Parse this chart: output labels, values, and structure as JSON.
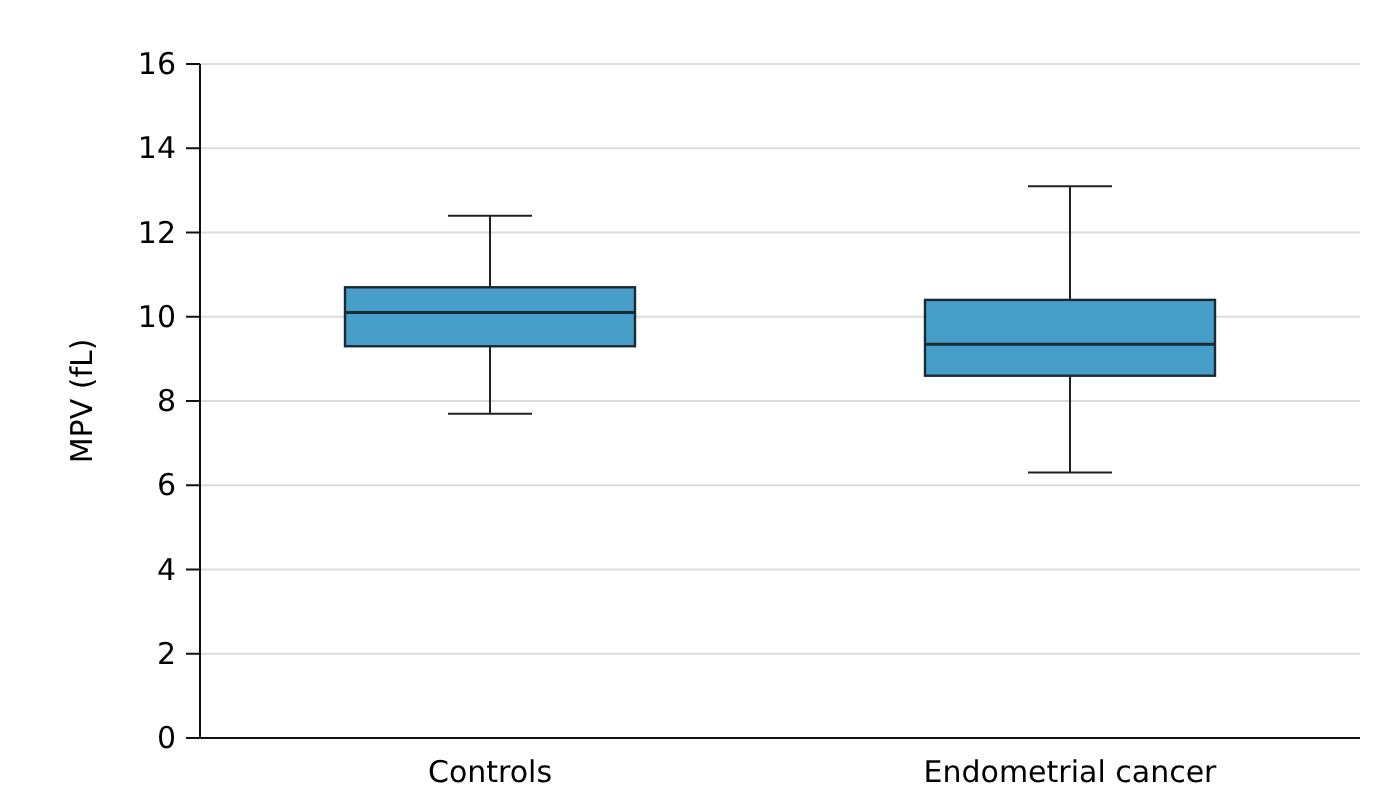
{
  "chart_data": {
    "type": "box",
    "ylabel": "MPV (fL)",
    "categories": [
      "Controls",
      "Endometrial cancer"
    ],
    "boxes": [
      {
        "low": 7.7,
        "q1": 9.3,
        "median": 10.1,
        "q3": 10.7,
        "high": 12.4
      },
      {
        "low": 6.3,
        "q1": 8.6,
        "median": 9.35,
        "q3": 10.4,
        "high": 13.1
      }
    ],
    "color": "#479ec9",
    "ylim": [
      0,
      16
    ],
    "yticks": [
      0,
      2,
      4,
      6,
      8,
      10,
      12,
      14,
      16
    ],
    "grid": "y"
  }
}
